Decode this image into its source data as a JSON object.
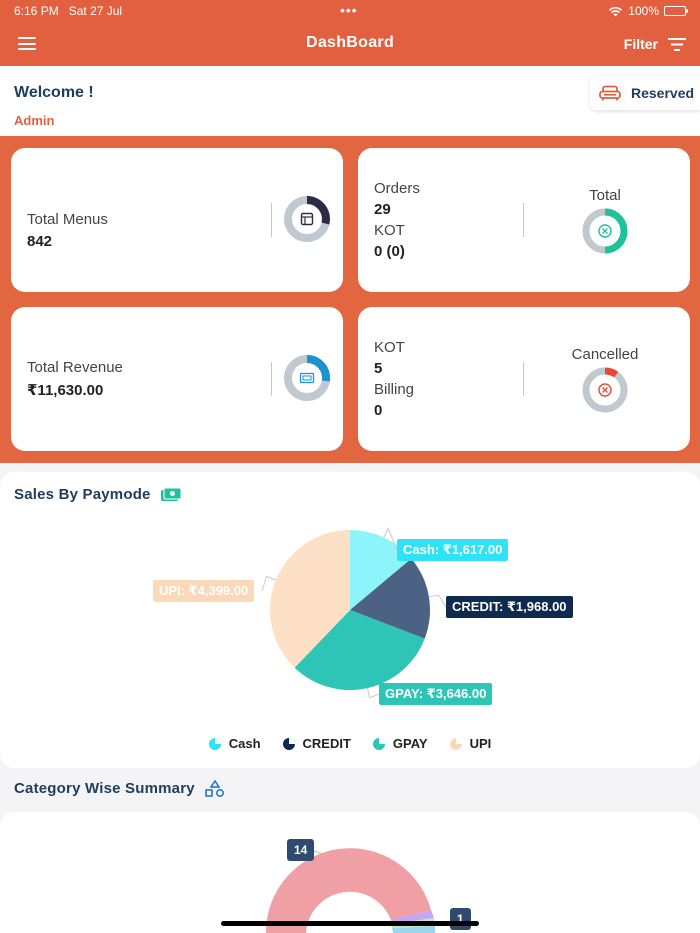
{
  "status_bar": {
    "time": "6:16 PM",
    "date": "Sat 27 Jul",
    "battery": "100%"
  },
  "nav": {
    "title": "DashBoard",
    "filter_label": "Filter"
  },
  "welcome": {
    "title": "Welcome !",
    "user": "Admin",
    "reserved_label": "Reserved"
  },
  "cards": {
    "menus": {
      "label": "Total Menus",
      "value": "842"
    },
    "orders": {
      "orders_label": "Orders",
      "orders_value": "29",
      "kot_label": "KOT",
      "kot_value": "0 (0)",
      "ring_label": "Total"
    },
    "revenue": {
      "label": "Total Revenue",
      "value": "₹11,630.00"
    },
    "cancelled": {
      "kot_label": "KOT",
      "kot_value": "5",
      "billing_label": "Billing",
      "billing_value": "0",
      "ring_label": "Cancelled"
    }
  },
  "paymode": {
    "title": "Sales By Paymode",
    "labels": {
      "cash": "Cash: ₹1,617.00",
      "credit": "CREDIT: ₹1,968.00",
      "gpay": "GPAY: ₹3,646.00",
      "upi": "UPI: ₹4,399.00"
    },
    "legend": [
      "Cash",
      "CREDIT",
      "GPAY",
      "UPI"
    ]
  },
  "category": {
    "title": "Category Wise Summary",
    "badge_top": "14",
    "badge_right": "1"
  },
  "chart_data": {
    "type": "pie",
    "title": "Sales By Paymode",
    "categories": [
      "Cash",
      "CREDIT",
      "GPAY",
      "UPI"
    ],
    "values": [
      1617,
      1968,
      3646,
      4399
    ],
    "colors": [
      "#8ef4fb",
      "#4b6285",
      "#2ec4b6",
      "#fde0c5"
    ]
  },
  "colors": {
    "brand": "#e2603f",
    "navy": "#1f3d5c",
    "teal": "#2ec4b6",
    "cancel_red": "#e8483a"
  }
}
